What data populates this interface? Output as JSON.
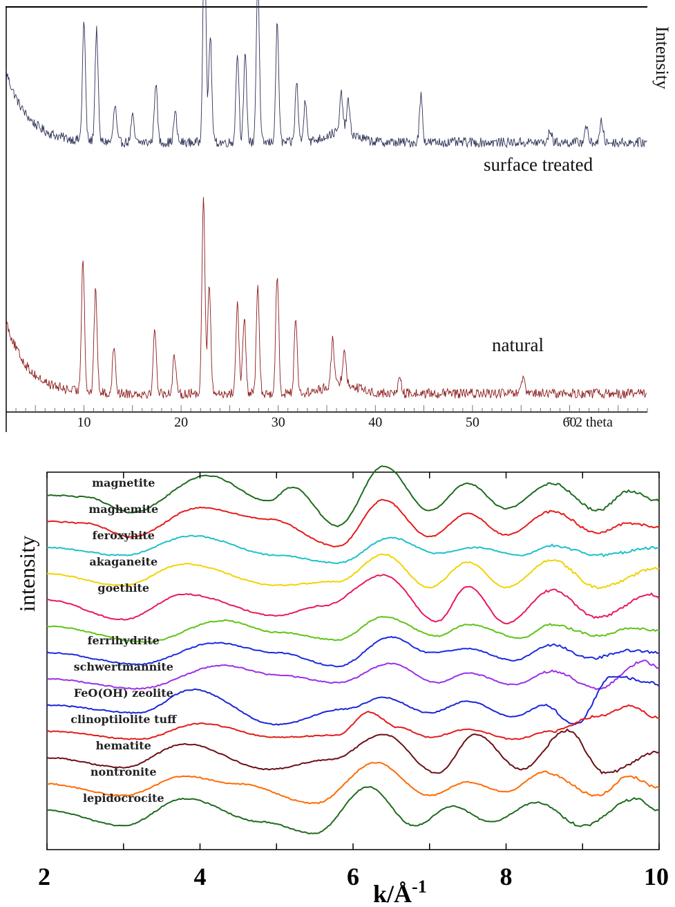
{
  "chart_data": [
    {
      "type": "line",
      "title": "",
      "xlabel": "° 2 theta",
      "ylabel": "Intensity",
      "xlim": [
        2,
        68
      ],
      "x_ticks": [
        10,
        20,
        30,
        40,
        50,
        60
      ],
      "x_tick_labels": [
        "10",
        "20",
        "30",
        "40",
        "50",
        "60"
      ],
      "grid": false,
      "series": [
        {
          "name": "surface treated",
          "color": "#2b2f55",
          "baseline": 0.4,
          "peaks": [
            [
              10.0,
              0.55
            ],
            [
              11.3,
              0.52
            ],
            [
              13.2,
              0.17
            ],
            [
              15.0,
              0.12
            ],
            [
              17.4,
              0.28
            ],
            [
              19.4,
              0.14
            ],
            [
              22.4,
              1.0
            ],
            [
              23.0,
              0.5
            ],
            [
              25.8,
              0.42
            ],
            [
              26.6,
              0.4
            ],
            [
              27.9,
              0.78
            ],
            [
              29.9,
              0.55
            ],
            [
              31.9,
              0.28
            ],
            [
              32.8,
              0.2
            ],
            [
              36.5,
              0.18
            ],
            [
              37.2,
              0.15
            ],
            [
              44.7,
              0.22
            ],
            [
              58.0,
              0.06
            ],
            [
              61.7,
              0.08
            ],
            [
              63.3,
              0.1
            ]
          ]
        },
        {
          "name": "natural",
          "color": "#8b1a1a",
          "baseline": 0.05,
          "peaks": [
            [
              9.9,
              0.62
            ],
            [
              11.2,
              0.48
            ],
            [
              13.1,
              0.22
            ],
            [
              17.3,
              0.3
            ],
            [
              19.3,
              0.18
            ],
            [
              22.3,
              0.9
            ],
            [
              22.9,
              0.5
            ],
            [
              25.8,
              0.42
            ],
            [
              26.5,
              0.35
            ],
            [
              27.9,
              0.48
            ],
            [
              29.9,
              0.55
            ],
            [
              31.8,
              0.35
            ],
            [
              35.6,
              0.2
            ],
            [
              36.8,
              0.16
            ],
            [
              42.5,
              0.08
            ],
            [
              55.2,
              0.07
            ]
          ]
        }
      ]
    },
    {
      "type": "line",
      "title": "",
      "xlabel": "k/Å",
      "xlabel_superscript": "-1",
      "ylabel": "intensity",
      "xlim": [
        2,
        10
      ],
      "x_ticks": [
        2,
        4,
        6,
        8,
        10
      ],
      "x_tick_labels": [
        "2",
        "4",
        "6",
        "8",
        "10"
      ],
      "grid": false,
      "series": [
        {
          "name": "magnetite",
          "color": "#1e6b1e",
          "offset": 13,
          "points": [
            [
              2.0,
              0.0
            ],
            [
              2.5,
              -0.1
            ],
            [
              3.1,
              -0.9
            ],
            [
              4.1,
              1.0
            ],
            [
              4.9,
              -0.3
            ],
            [
              5.2,
              0.4
            ],
            [
              5.8,
              -1.6
            ],
            [
              6.4,
              1.5
            ],
            [
              7.0,
              -0.8
            ],
            [
              7.5,
              0.6
            ],
            [
              8.0,
              -0.7
            ],
            [
              8.6,
              0.6
            ],
            [
              9.2,
              -0.8
            ],
            [
              9.6,
              0.2
            ],
            [
              10.0,
              -0.3
            ]
          ]
        },
        {
          "name": "maghemite",
          "color": "#e51b1b",
          "offset": 12,
          "points": [
            [
              2.0,
              0.0
            ],
            [
              2.5,
              -0.1
            ],
            [
              3.1,
              -0.8
            ],
            [
              4.0,
              0.7
            ],
            [
              4.9,
              0.1
            ],
            [
              5.8,
              -1.3
            ],
            [
              6.4,
              1.1
            ],
            [
              7.0,
              -0.8
            ],
            [
              7.5,
              0.4
            ],
            [
              8.0,
              -0.7
            ],
            [
              8.6,
              0.5
            ],
            [
              9.2,
              -0.6
            ],
            [
              9.6,
              -0.1
            ],
            [
              10.0,
              -0.3
            ]
          ]
        },
        {
          "name": "feroxyhite",
          "color": "#1cc1c9",
          "offset": 11,
          "points": [
            [
              2.0,
              0.0
            ],
            [
              3.0,
              -0.4
            ],
            [
              3.9,
              0.6
            ],
            [
              5.0,
              -0.4
            ],
            [
              5.8,
              -0.8
            ],
            [
              6.5,
              0.5
            ],
            [
              7.1,
              -0.3
            ],
            [
              7.6,
              0.0
            ],
            [
              8.2,
              -0.4
            ],
            [
              8.6,
              0.1
            ],
            [
              9.2,
              -0.4
            ],
            [
              10.0,
              0.0
            ]
          ]
        },
        {
          "name": "akaganeite",
          "color": "#f2d300",
          "offset": 10,
          "points": [
            [
              2.0,
              0.0
            ],
            [
              3.0,
              -0.6
            ],
            [
              3.8,
              0.5
            ],
            [
              5.0,
              -0.6
            ],
            [
              5.8,
              -0.4
            ],
            [
              6.4,
              1.0
            ],
            [
              7.0,
              -0.7
            ],
            [
              7.5,
              0.6
            ],
            [
              8.0,
              -0.7
            ],
            [
              8.6,
              0.7
            ],
            [
              9.2,
              -0.7
            ],
            [
              10.0,
              0.3
            ]
          ]
        },
        {
          "name": "goethite",
          "color": "#e8195a",
          "offset": 9,
          "points": [
            [
              2.0,
              0.0
            ],
            [
              3.0,
              -1.0
            ],
            [
              3.8,
              0.3
            ],
            [
              5.0,
              -0.8
            ],
            [
              5.6,
              -0.3
            ],
            [
              6.4,
              1.3
            ],
            [
              7.1,
              -1.1
            ],
            [
              7.5,
              0.7
            ],
            [
              8.0,
              -1.2
            ],
            [
              8.6,
              0.5
            ],
            [
              9.2,
              -0.9
            ],
            [
              9.9,
              0.3
            ],
            [
              10.0,
              0.1
            ]
          ]
        },
        {
          "name": "",
          "color": "#5ec416",
          "offset": 8,
          "points": [
            [
              2.0,
              0.0
            ],
            [
              3.3,
              -0.8
            ],
            [
              4.3,
              0.3
            ],
            [
              5.0,
              -0.3
            ],
            [
              5.8,
              -0.7
            ],
            [
              6.4,
              0.5
            ],
            [
              7.1,
              -0.5
            ],
            [
              7.5,
              0.1
            ],
            [
              8.2,
              -0.6
            ],
            [
              8.6,
              0.1
            ],
            [
              9.2,
              -0.5
            ],
            [
              9.6,
              -0.1
            ],
            [
              10.0,
              -0.2
            ]
          ]
        },
        {
          "name": "ferrihydrite",
          "color": "#1b2ae0",
          "offset": 7,
          "points": [
            [
              2.0,
              0.0
            ],
            [
              3.2,
              -0.6
            ],
            [
              4.2,
              0.5
            ],
            [
              5.0,
              0.0
            ],
            [
              5.8,
              -0.7
            ],
            [
              6.5,
              0.8
            ],
            [
              7.0,
              0.0
            ],
            [
              7.5,
              0.2
            ],
            [
              8.1,
              -0.4
            ],
            [
              8.6,
              0.4
            ],
            [
              9.1,
              -0.3
            ],
            [
              9.6,
              0.1
            ],
            [
              10.0,
              0.0
            ]
          ]
        },
        {
          "name": "schwertmannite",
          "color": "#9b2fe8",
          "offset": 6,
          "points": [
            [
              2.0,
              0.0
            ],
            [
              3.2,
              -0.5
            ],
            [
              4.3,
              0.7
            ],
            [
              5.0,
              0.2
            ],
            [
              5.8,
              -0.2
            ],
            [
              6.5,
              0.8
            ],
            [
              7.1,
              -0.2
            ],
            [
              7.5,
              0.3
            ],
            [
              8.1,
              -0.3
            ],
            [
              8.6,
              0.4
            ],
            [
              9.2,
              -0.5
            ],
            [
              9.8,
              0.9
            ],
            [
              10.0,
              0.6
            ]
          ]
        },
        {
          "name": "FeO(OH) zeolite",
          "color": "#1b24d9",
          "offset": 5,
          "points": [
            [
              2.0,
              0.0
            ],
            [
              3.2,
              -0.4
            ],
            [
              3.9,
              0.8
            ],
            [
              5.0,
              -1.0
            ],
            [
              5.9,
              -0.2
            ],
            [
              6.4,
              0.4
            ],
            [
              7.0,
              -0.4
            ],
            [
              7.5,
              0.2
            ],
            [
              8.1,
              -0.6
            ],
            [
              8.5,
              0.0
            ],
            [
              8.9,
              -1.0
            ],
            [
              9.4,
              1.5
            ],
            [
              9.9,
              1.2
            ],
            [
              10.0,
              1.0
            ]
          ]
        },
        {
          "name": "clinoptilolite tuff",
          "color": "#e51b1b",
          "offset": 4,
          "points": [
            [
              2.0,
              0.0
            ],
            [
              3.2,
              -0.4
            ],
            [
              4.0,
              0.4
            ],
            [
              5.0,
              -0.3
            ],
            [
              5.8,
              -0.2
            ],
            [
              6.2,
              1.0
            ],
            [
              6.6,
              0.2
            ],
            [
              7.0,
              -0.3
            ],
            [
              7.5,
              0.1
            ],
            [
              8.1,
              -0.4
            ],
            [
              8.6,
              0.0
            ],
            [
              9.2,
              0.8
            ],
            [
              9.6,
              1.3
            ],
            [
              10.0,
              0.7
            ]
          ]
        },
        {
          "name": "hematite",
          "color": "#6b0f16",
          "offset": 3,
          "points": [
            [
              2.0,
              0.0
            ],
            [
              3.0,
              -0.5
            ],
            [
              3.8,
              0.7
            ],
            [
              4.9,
              -0.6
            ],
            [
              5.7,
              -0.1
            ],
            [
              6.4,
              1.2
            ],
            [
              7.1,
              -0.8
            ],
            [
              7.6,
              1.2
            ],
            [
              8.2,
              -0.6
            ],
            [
              8.8,
              1.4
            ],
            [
              9.3,
              -0.8
            ],
            [
              10.0,
              0.3
            ]
          ]
        },
        {
          "name": "nontronite",
          "color": "#ff6a00",
          "offset": 2,
          "points": [
            [
              2.0,
              0.0
            ],
            [
              3.0,
              -0.6
            ],
            [
              3.8,
              0.4
            ],
            [
              4.5,
              0.0
            ],
            [
              5.5,
              -1.0
            ],
            [
              6.3,
              1.1
            ],
            [
              7.0,
              -0.6
            ],
            [
              7.5,
              0.1
            ],
            [
              8.0,
              -0.4
            ],
            [
              8.5,
              0.6
            ],
            [
              9.2,
              -0.6
            ],
            [
              9.6,
              0.4
            ],
            [
              10.0,
              -0.2
            ]
          ]
        },
        {
          "name": "lepidocrocite",
          "color": "#1e6b1e",
          "offset": 1,
          "points": [
            [
              2.0,
              0.0
            ],
            [
              3.0,
              -0.8
            ],
            [
              3.8,
              0.6
            ],
            [
              4.8,
              -0.6
            ],
            [
              5.5,
              -1.2
            ],
            [
              6.2,
              1.2
            ],
            [
              6.8,
              -0.8
            ],
            [
              7.3,
              0.2
            ],
            [
              7.8,
              -0.6
            ],
            [
              8.4,
              0.4
            ],
            [
              9.0,
              -0.8
            ],
            [
              9.7,
              0.6
            ],
            [
              10.0,
              0.0
            ]
          ]
        }
      ]
    }
  ]
}
